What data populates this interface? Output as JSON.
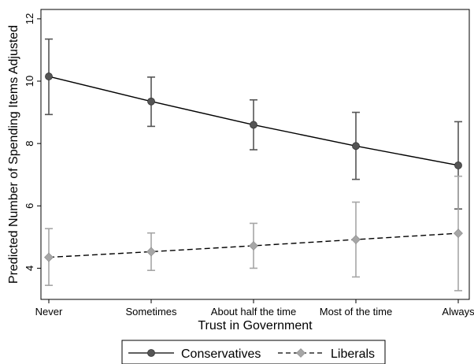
{
  "chart_data": {
    "type": "line",
    "xlabel": "Trust in Government",
    "ylabel": "Predicted Number of Spending Items Adjusted",
    "categories": [
      "Never",
      "Sometimes",
      "About half the time",
      "Most of the time",
      "Always"
    ],
    "ylim": [
      3,
      12.3
    ],
    "yticks": [
      4,
      6,
      8,
      10,
      12
    ],
    "grid": false,
    "legend_position": "bottom",
    "series": [
      {
        "name": "Conservatives",
        "values": [
          10.15,
          9.35,
          8.6,
          7.92,
          7.3
        ],
        "ci_low": [
          8.93,
          8.55,
          7.8,
          6.85,
          5.9
        ],
        "ci_high": [
          11.35,
          10.13,
          9.4,
          9.0,
          8.7
        ],
        "color": "#555555",
        "line_style": "solid",
        "marker": "circle"
      },
      {
        "name": "Liberals",
        "values": [
          4.35,
          4.53,
          4.72,
          4.92,
          5.12
        ],
        "ci_low": [
          3.45,
          3.93,
          4.0,
          3.72,
          3.28
        ],
        "ci_high": [
          5.27,
          5.13,
          5.44,
          6.12,
          6.95
        ],
        "color": "#a6a6a6",
        "line_style": "dashed",
        "marker": "diamond"
      }
    ]
  }
}
